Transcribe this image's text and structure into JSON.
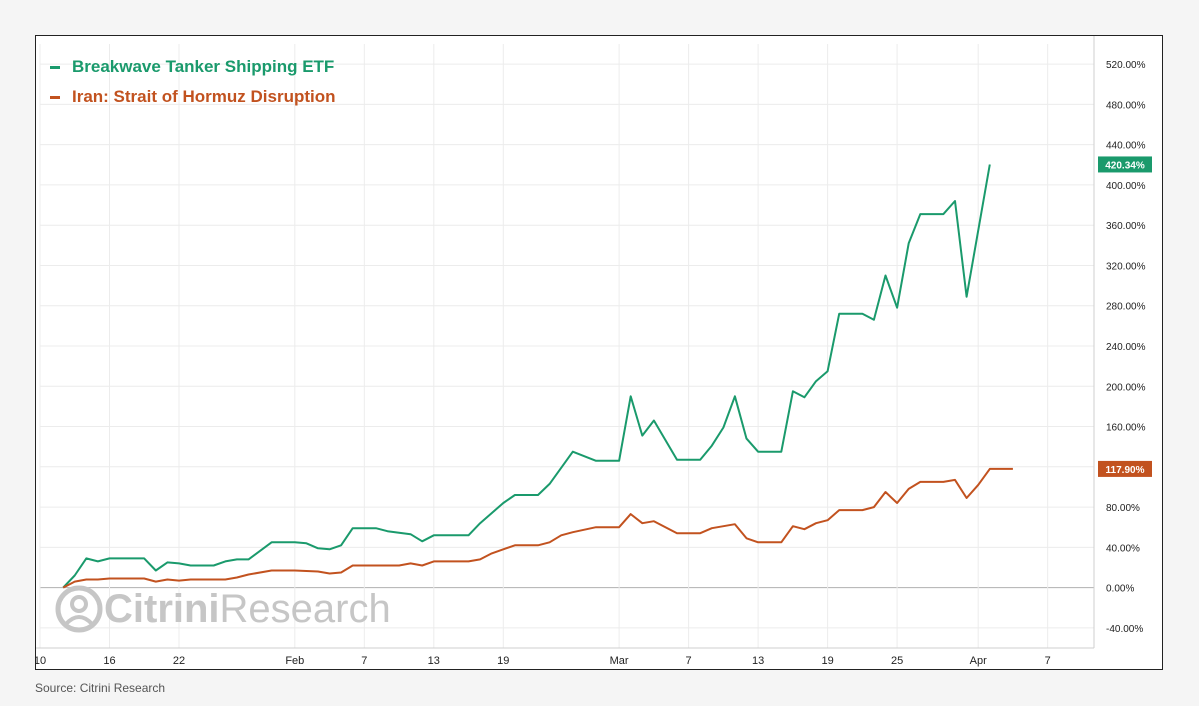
{
  "colors": {
    "etf": "#1a9a6c",
    "hormuz": "#c2521f",
    "grid": "#ececec",
    "zero_line": "#b0b0b0",
    "axis_text": "#222222",
    "watermark": "#c6c6c6"
  },
  "watermark": {
    "bold": "Citrini",
    "light": "Research",
    "icon": "citrini-logo-icon"
  },
  "source": "Source: Citrini Research",
  "chart_data": {
    "type": "line",
    "title": "",
    "xlabel": "",
    "ylabel": "",
    "ylim": [
      -60,
      540
    ],
    "grid": true,
    "legend_position": "top-left",
    "y_ticks": [
      -40,
      0,
      40,
      80,
      120,
      160,
      200,
      240,
      280,
      320,
      360,
      400,
      440,
      480,
      520
    ],
    "y_tick_labels": [
      "-40.00%",
      "0.00%",
      "40.00%",
      "80.00%",
      "120.00%",
      "160.00%",
      "200.00%",
      "240.00%",
      "280.00%",
      "320.00%",
      "360.00%",
      "400.00%",
      "440.00%",
      "480.00%",
      "520.00%"
    ],
    "x_date_range": [
      "2025-01-10",
      "2025-04-11"
    ],
    "x_ticks": [
      {
        "date": "2025-01-10",
        "label": "10"
      },
      {
        "date": "2025-01-16",
        "label": "16"
      },
      {
        "date": "2025-01-22",
        "label": "22"
      },
      {
        "date": "2025-02-01",
        "label": "Feb"
      },
      {
        "date": "2025-02-07",
        "label": "7"
      },
      {
        "date": "2025-02-13",
        "label": "13"
      },
      {
        "date": "2025-02-19",
        "label": "19"
      },
      {
        "date": "2025-03-01",
        "label": "Mar"
      },
      {
        "date": "2025-03-07",
        "label": "7"
      },
      {
        "date": "2025-03-13",
        "label": "13"
      },
      {
        "date": "2025-03-19",
        "label": "19"
      },
      {
        "date": "2025-03-25",
        "label": "25"
      },
      {
        "date": "2025-04-01",
        "label": "Apr"
      },
      {
        "date": "2025-04-07",
        "label": "7"
      }
    ],
    "series": [
      {
        "name": "Breakwave Tanker Shipping ETF",
        "color": "#1a9a6c",
        "last_value_label": "420.34%",
        "points": [
          [
            "2025-01-12",
            0
          ],
          [
            "2025-01-13",
            12
          ],
          [
            "2025-01-14",
            29
          ],
          [
            "2025-01-15",
            26
          ],
          [
            "2025-01-16",
            29
          ],
          [
            "2025-01-17",
            29
          ],
          [
            "2025-01-18",
            29
          ],
          [
            "2025-01-19",
            29
          ],
          [
            "2025-01-20",
            17
          ],
          [
            "2025-01-21",
            25
          ],
          [
            "2025-01-22",
            24
          ],
          [
            "2025-01-23",
            22
          ],
          [
            "2025-01-24",
            22
          ],
          [
            "2025-01-25",
            22
          ],
          [
            "2025-01-26",
            26
          ],
          [
            "2025-01-27",
            28
          ],
          [
            "2025-01-28",
            28
          ],
          [
            "2025-01-30",
            45
          ],
          [
            "2025-02-01",
            45
          ],
          [
            "2025-02-02",
            44
          ],
          [
            "2025-02-03",
            39
          ],
          [
            "2025-02-04",
            38
          ],
          [
            "2025-02-05",
            42
          ],
          [
            "2025-02-06",
            59
          ],
          [
            "2025-02-08",
            59
          ],
          [
            "2025-02-09",
            56
          ],
          [
            "2025-02-11",
            53
          ],
          [
            "2025-02-12",
            46
          ],
          [
            "2025-02-13",
            52
          ],
          [
            "2025-02-16",
            52
          ],
          [
            "2025-02-17",
            64
          ],
          [
            "2025-02-18",
            74
          ],
          [
            "2025-02-19",
            84
          ],
          [
            "2025-02-20",
            92
          ],
          [
            "2025-02-22",
            92
          ],
          [
            "2025-02-23",
            103
          ],
          [
            "2025-02-25",
            135
          ],
          [
            "2025-02-27",
            126
          ],
          [
            "2025-03-01",
            126
          ],
          [
            "2025-03-02",
            190
          ],
          [
            "2025-03-03",
            151
          ],
          [
            "2025-03-04",
            166
          ],
          [
            "2025-03-06",
            127
          ],
          [
            "2025-03-08",
            127
          ],
          [
            "2025-03-09",
            141
          ],
          [
            "2025-03-10",
            159
          ],
          [
            "2025-03-11",
            190
          ],
          [
            "2025-03-12",
            148
          ],
          [
            "2025-03-13",
            135
          ],
          [
            "2025-03-15",
            135
          ],
          [
            "2025-03-16",
            195
          ],
          [
            "2025-03-17",
            189
          ],
          [
            "2025-03-18",
            205
          ],
          [
            "2025-03-19",
            215
          ],
          [
            "2025-03-20",
            272
          ],
          [
            "2025-03-22",
            272
          ],
          [
            "2025-03-23",
            266
          ],
          [
            "2025-03-24",
            310
          ],
          [
            "2025-03-25",
            278
          ],
          [
            "2025-03-26",
            342
          ],
          [
            "2025-03-27",
            371
          ],
          [
            "2025-03-29",
            371
          ],
          [
            "2025-03-30",
            384
          ],
          [
            "2025-03-31",
            289
          ],
          [
            "2025-04-02",
            420.34
          ]
        ]
      },
      {
        "name": "Iran: Strait of Hormuz Disruption",
        "color": "#c2521f",
        "last_value_label": "117.90%",
        "points": [
          [
            "2025-01-12",
            0
          ],
          [
            "2025-01-13",
            6
          ],
          [
            "2025-01-14",
            8
          ],
          [
            "2025-01-15",
            8
          ],
          [
            "2025-01-16",
            9
          ],
          [
            "2025-01-19",
            9
          ],
          [
            "2025-01-20",
            6
          ],
          [
            "2025-01-21",
            8
          ],
          [
            "2025-01-22",
            7
          ],
          [
            "2025-01-23",
            8
          ],
          [
            "2025-01-26",
            8
          ],
          [
            "2025-01-27",
            10
          ],
          [
            "2025-01-28",
            13
          ],
          [
            "2025-01-30",
            17
          ],
          [
            "2025-02-01",
            17
          ],
          [
            "2025-02-03",
            16
          ],
          [
            "2025-02-04",
            14
          ],
          [
            "2025-02-05",
            15
          ],
          [
            "2025-02-06",
            22
          ],
          [
            "2025-02-08",
            22
          ],
          [
            "2025-02-10",
            22
          ],
          [
            "2025-02-11",
            24
          ],
          [
            "2025-02-12",
            22
          ],
          [
            "2025-02-13",
            26
          ],
          [
            "2025-02-16",
            26
          ],
          [
            "2025-02-17",
            28
          ],
          [
            "2025-02-18",
            34
          ],
          [
            "2025-02-19",
            38
          ],
          [
            "2025-02-20",
            42
          ],
          [
            "2025-02-22",
            42
          ],
          [
            "2025-02-23",
            45
          ],
          [
            "2025-02-24",
            52
          ],
          [
            "2025-02-25",
            55
          ],
          [
            "2025-02-27",
            60
          ],
          [
            "2025-03-01",
            60
          ],
          [
            "2025-03-02",
            73
          ],
          [
            "2025-03-03",
            64
          ],
          [
            "2025-03-04",
            66
          ],
          [
            "2025-03-06",
            54
          ],
          [
            "2025-03-08",
            54
          ],
          [
            "2025-03-09",
            59
          ],
          [
            "2025-03-10",
            61
          ],
          [
            "2025-03-11",
            63
          ],
          [
            "2025-03-12",
            49
          ],
          [
            "2025-03-13",
            45
          ],
          [
            "2025-03-15",
            45
          ],
          [
            "2025-03-16",
            61
          ],
          [
            "2025-03-17",
            58
          ],
          [
            "2025-03-18",
            64
          ],
          [
            "2025-03-19",
            67
          ],
          [
            "2025-03-20",
            77
          ],
          [
            "2025-03-22",
            77
          ],
          [
            "2025-03-23",
            80
          ],
          [
            "2025-03-24",
            95
          ],
          [
            "2025-03-25",
            84
          ],
          [
            "2025-03-26",
            98
          ],
          [
            "2025-03-27",
            105
          ],
          [
            "2025-03-29",
            105
          ],
          [
            "2025-03-30",
            107
          ],
          [
            "2025-03-31",
            89
          ],
          [
            "2025-04-01",
            102
          ],
          [
            "2025-04-02",
            117.9
          ],
          [
            "2025-04-04",
            117.9
          ]
        ]
      }
    ]
  }
}
